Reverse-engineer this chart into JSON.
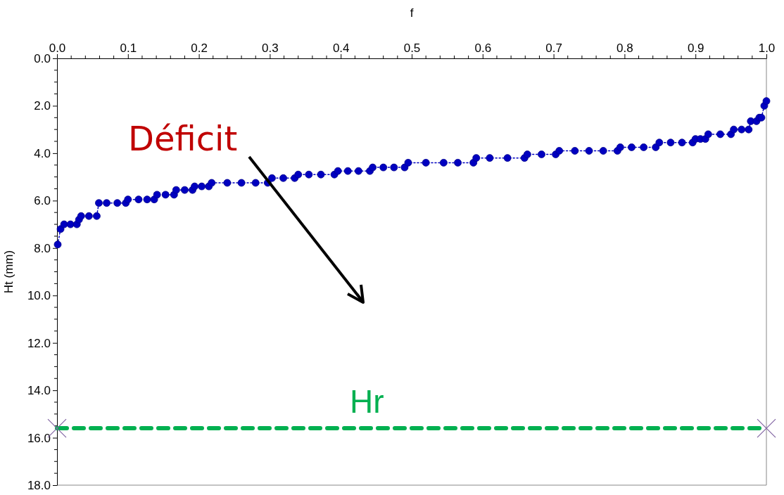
{
  "chart_data": {
    "type": "line",
    "xlabel": "f",
    "ylabel": "Ht (mm)",
    "xlim": [
      0,
      1
    ],
    "ylim": [
      18,
      0
    ],
    "xticks": [
      {
        "value": 0,
        "label": "0.0"
      },
      {
        "value": 0.1,
        "label": "0.1"
      },
      {
        "value": 0.2,
        "label": "0.2"
      },
      {
        "value": 0.3,
        "label": "0.3"
      },
      {
        "value": 0.4,
        "label": "0.4"
      },
      {
        "value": 0.5,
        "label": "0.5"
      },
      {
        "value": 0.6,
        "label": "0.6"
      },
      {
        "value": 0.7,
        "label": "0.7"
      },
      {
        "value": 0.8,
        "label": "0.8"
      },
      {
        "value": 0.9,
        "label": "0.9"
      },
      {
        "value": 1,
        "label": "1.0"
      }
    ],
    "yticks": [
      {
        "value": 0,
        "label": "0.0"
      },
      {
        "value": 2,
        "label": "2.0"
      },
      {
        "value": 4,
        "label": "4.0"
      },
      {
        "value": 6,
        "label": "6.0"
      },
      {
        "value": 8,
        "label": "8.0"
      },
      {
        "value": 10,
        "label": "10.0"
      },
      {
        "value": 12,
        "label": "12.0"
      },
      {
        "value": 14,
        "label": "14.0"
      },
      {
        "value": 16,
        "label": "16.0"
      },
      {
        "value": 18,
        "label": "18.0"
      }
    ],
    "grid": false,
    "series": [
      {
        "color": "#0000c0",
        "marker": "circle",
        "line_style": "dotted",
        "x": [
          0.001,
          0.005,
          0.01,
          0.019,
          0.028,
          0.031,
          0.034,
          0.045,
          0.056,
          0.059,
          0.07,
          0.085,
          0.097,
          0.1,
          0.115,
          0.127,
          0.137,
          0.141,
          0.153,
          0.165,
          0.168,
          0.18,
          0.191,
          0.194,
          0.204,
          0.214,
          0.218,
          0.24,
          0.26,
          0.28,
          0.297,
          0.303,
          0.319,
          0.335,
          0.34,
          0.355,
          0.372,
          0.391,
          0.396,
          0.41,
          0.425,
          0.441,
          0.445,
          0.46,
          0.475,
          0.49,
          0.495,
          0.52,
          0.545,
          0.565,
          0.587,
          0.591,
          0.61,
          0.635,
          0.659,
          0.663,
          0.683,
          0.703,
          0.708,
          0.73,
          0.75,
          0.77,
          0.79,
          0.794,
          0.81,
          0.827,
          0.844,
          0.849,
          0.865,
          0.881,
          0.896,
          0.9,
          0.907,
          0.914,
          0.918,
          0.935,
          0.95,
          0.954,
          0.965,
          0.975,
          0.978,
          0.986,
          0.99,
          0.993,
          0.997,
          1.0
        ],
        "values": [
          7.85,
          7.2,
          7.0,
          7.0,
          7.0,
          6.8,
          6.65,
          6.65,
          6.65,
          6.1,
          6.1,
          6.1,
          6.1,
          5.95,
          5.95,
          5.95,
          5.95,
          5.75,
          5.75,
          5.75,
          5.55,
          5.55,
          5.55,
          5.4,
          5.4,
          5.4,
          5.25,
          5.25,
          5.25,
          5.25,
          5.25,
          5.05,
          5.05,
          5.05,
          4.9,
          4.9,
          4.9,
          4.9,
          4.75,
          4.75,
          4.75,
          4.75,
          4.6,
          4.6,
          4.6,
          4.6,
          4.4,
          4.4,
          4.4,
          4.4,
          4.4,
          4.2,
          4.2,
          4.2,
          4.2,
          4.05,
          4.05,
          4.05,
          3.9,
          3.9,
          3.9,
          3.9,
          3.9,
          3.75,
          3.75,
          3.75,
          3.75,
          3.55,
          3.55,
          3.55,
          3.55,
          3.4,
          3.4,
          3.4,
          3.2,
          3.2,
          3.2,
          3.0,
          3.0,
          3.0,
          2.65,
          2.65,
          2.5,
          2.5,
          2.0,
          1.8
        ]
      },
      {
        "name": "Hr",
        "color": "#00b050",
        "marker": "cross",
        "line_style": "dashed",
        "x": [
          0,
          1
        ],
        "values": [
          15.6,
          15.6
        ]
      }
    ],
    "annotations": [
      "Déficit"
    ]
  }
}
